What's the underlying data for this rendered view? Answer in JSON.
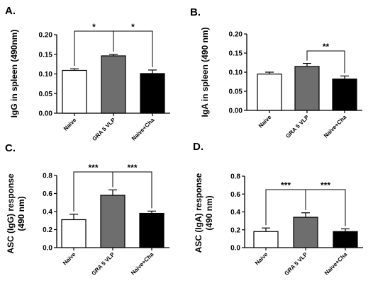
{
  "colors": {
    "naive": "#ffffff",
    "gra5vlp": "#6e6e6e",
    "naive_cha": "#000000",
    "axis": "#000000"
  },
  "chart_data": [
    {
      "type": "bar",
      "panel": "A.",
      "categories": [
        "Naive",
        "GRA 5 VLP",
        "Naive+Cha"
      ],
      "values": [
        0.109,
        0.146,
        0.101
      ],
      "errors": [
        0.004,
        0.004,
        0.009
      ],
      "ylabel": "IgG in spleen (490nm)",
      "ylim": [
        0,
        0.2
      ],
      "yticks": [
        0.0,
        0.05,
        0.1,
        0.15,
        0.2
      ],
      "ytick_labels": [
        "0.00",
        "0.05",
        "0.10",
        "0.15",
        "0.20"
      ],
      "significance": [
        {
          "from": 0,
          "to": 1,
          "label": "*"
        },
        {
          "from": 1,
          "to": 2,
          "label": "*"
        }
      ]
    },
    {
      "type": "bar",
      "panel": "B.",
      "categories": [
        "Naive",
        "GRA 5 VLP",
        "Naive+Cha"
      ],
      "values": [
        0.095,
        0.115,
        0.082
      ],
      "errors": [
        0.005,
        0.008,
        0.008
      ],
      "ylabel": "IgA in spleen (490 nm)",
      "ylim": [
        0,
        0.2
      ],
      "yticks": [
        0.0,
        0.05,
        0.1,
        0.15,
        0.2
      ],
      "ytick_labels": [
        "0.00",
        "0.05",
        "0.10",
        "0.15",
        "0.20"
      ],
      "significance": [
        {
          "from": 1,
          "to": 2,
          "label": "**"
        }
      ]
    },
    {
      "type": "bar",
      "panel": "C.",
      "categories": [
        "Naive",
        "GRA 5 VLP",
        "Naive+Cha"
      ],
      "values": [
        0.31,
        0.58,
        0.38
      ],
      "errors": [
        0.06,
        0.06,
        0.025
      ],
      "ylabel": "ASC (IgG) response",
      "ylabel2": "(490 nm)",
      "ylim": [
        0,
        0.8
      ],
      "yticks": [
        0.0,
        0.2,
        0.4,
        0.6,
        0.8
      ],
      "ytick_labels": [
        "0.0",
        "0.2",
        "0.4",
        "0.6",
        "0.8"
      ],
      "significance": [
        {
          "from": 0,
          "to": 1,
          "label": "***"
        },
        {
          "from": 1,
          "to": 2,
          "label": "***"
        }
      ]
    },
    {
      "type": "bar",
      "panel": "D.",
      "categories": [
        "Naive",
        "GRA 5 VLP",
        "Naive+Cha"
      ],
      "values": [
        0.18,
        0.34,
        0.18
      ],
      "errors": [
        0.04,
        0.05,
        0.03
      ],
      "ylabel": "ASC (IgA) response",
      "ylabel2": "(490 nm)",
      "ylim": [
        0,
        0.8
      ],
      "yticks": [
        0.0,
        0.2,
        0.4,
        0.6,
        0.8
      ],
      "ytick_labels": [
        "0.0",
        "0.2",
        "0.4",
        "0.6",
        "0.8"
      ],
      "significance": [
        {
          "from": 0,
          "to": 1,
          "label": "***"
        },
        {
          "from": 1,
          "to": 2,
          "label": "***"
        }
      ]
    }
  ]
}
